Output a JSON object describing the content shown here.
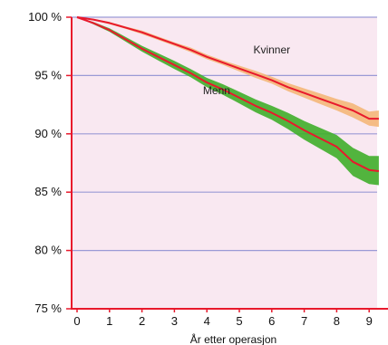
{
  "chart_data": {
    "type": "line",
    "title": "",
    "xlabel": "År etter operasjon",
    "ylabel": "",
    "xlim": [
      0,
      9.3
    ],
    "ylim": [
      75,
      100
    ],
    "x_ticks": [
      0,
      1,
      2,
      3,
      4,
      5,
      6,
      7,
      8,
      9
    ],
    "y_ticks": [
      {
        "value": 100,
        "label": "100 %"
      },
      {
        "value": 95,
        "label": "95 %"
      },
      {
        "value": 90,
        "label": "90 %"
      },
      {
        "value": 85,
        "label": "85 %"
      },
      {
        "value": 80,
        "label": "80 %"
      },
      {
        "value": 75,
        "label": "75 %"
      }
    ],
    "grid": "horizontal",
    "colors": {
      "background": "#f9e8f1",
      "axis": "#e8192c",
      "grid": "#9a9ad6",
      "line": "#e8192c",
      "band_kvinner": "#f4b779",
      "band_menn": "#3fae2a"
    },
    "series": [
      {
        "name": "Kvinner",
        "band_color": "band_kvinner",
        "x": [
          0,
          0.5,
          1,
          1.5,
          2,
          2.5,
          3,
          3.5,
          4,
          4.5,
          5,
          5.5,
          6,
          6.5,
          7,
          7.5,
          8,
          8.5,
          9,
          9.3
        ],
        "y": [
          100,
          99.8,
          99.5,
          99.1,
          98.7,
          98.2,
          97.7,
          97.2,
          96.6,
          96.1,
          95.6,
          95.1,
          94.6,
          94.0,
          93.5,
          93.0,
          92.5,
          92.0,
          91.3,
          91.3
        ],
        "lower": [
          100,
          99.75,
          99.4,
          99.0,
          98.55,
          98.05,
          97.55,
          97.0,
          96.4,
          95.9,
          95.35,
          94.8,
          94.3,
          93.65,
          93.1,
          92.55,
          92.0,
          91.4,
          90.7,
          90.6
        ],
        "upper": [
          100,
          99.85,
          99.6,
          99.2,
          98.85,
          98.35,
          97.85,
          97.4,
          96.8,
          96.3,
          95.85,
          95.4,
          94.9,
          94.35,
          93.9,
          93.45,
          93.0,
          92.6,
          91.9,
          92.0
        ]
      },
      {
        "name": "Menn",
        "band_color": "band_menn",
        "x": [
          0,
          0.5,
          1,
          1.5,
          2,
          2.5,
          3,
          3.5,
          4,
          4.5,
          5,
          5.5,
          6,
          6.5,
          7,
          7.5,
          8,
          8.5,
          9,
          9.3
        ],
        "y": [
          100,
          99.5,
          98.9,
          98.1,
          97.3,
          96.6,
          95.9,
          95.2,
          94.4,
          93.8,
          93.1,
          92.4,
          91.8,
          91.1,
          90.3,
          89.6,
          88.9,
          87.6,
          86.9,
          86.8
        ],
        "lower": [
          100,
          99.4,
          98.75,
          97.9,
          97.05,
          96.3,
          95.55,
          94.85,
          94.0,
          93.35,
          92.6,
          91.85,
          91.2,
          90.4,
          89.5,
          88.7,
          87.9,
          86.4,
          85.7,
          85.6
        ],
        "upper": [
          100,
          99.6,
          99.05,
          98.3,
          97.55,
          96.9,
          96.25,
          95.55,
          94.8,
          94.25,
          93.6,
          92.95,
          92.4,
          91.8,
          91.1,
          90.5,
          89.9,
          88.8,
          88.1,
          88.1
        ]
      }
    ]
  }
}
